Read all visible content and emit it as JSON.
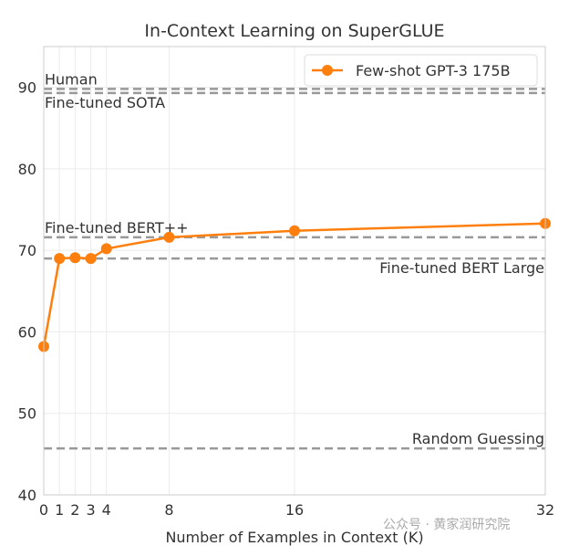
{
  "chart_data": {
    "type": "line",
    "title": "In-Context Learning on SuperGLUE",
    "xlabel": "Number of Examples in Context (K)",
    "ylabel": "",
    "xlim": [
      0,
      32
    ],
    "ylim": [
      40,
      95
    ],
    "xticks": [
      0,
      1,
      2,
      3,
      4,
      8,
      16,
      32
    ],
    "yticks": [
      40,
      50,
      60,
      70,
      80,
      90
    ],
    "grid": true,
    "legend_placement": "top-right",
    "series": [
      {
        "name": "Few-shot GPT-3 175B",
        "color": "#ff7f0e",
        "x": [
          0,
          1,
          2,
          3,
          4,
          8,
          16,
          32
        ],
        "y": [
          58.2,
          69.0,
          69.1,
          69.0,
          70.2,
          71.6,
          72.4,
          73.3
        ]
      }
    ],
    "reference_lines": [
      {
        "label": "Human",
        "y": 89.8,
        "label_pos": "above-left"
      },
      {
        "label": "Fine-tuned SOTA",
        "y": 89.3,
        "label_pos": "below-left"
      },
      {
        "label": "Fine-tuned BERT++",
        "y": 71.6,
        "label_pos": "above-left"
      },
      {
        "label": "Fine-tuned BERT Large",
        "y": 69.0,
        "label_pos": "below-right"
      },
      {
        "label": "Random Guessing",
        "y": 45.7,
        "label_pos": "above-right"
      }
    ],
    "reference_color": "#999999"
  },
  "watermark": "公众号 · 黄家润研究院"
}
